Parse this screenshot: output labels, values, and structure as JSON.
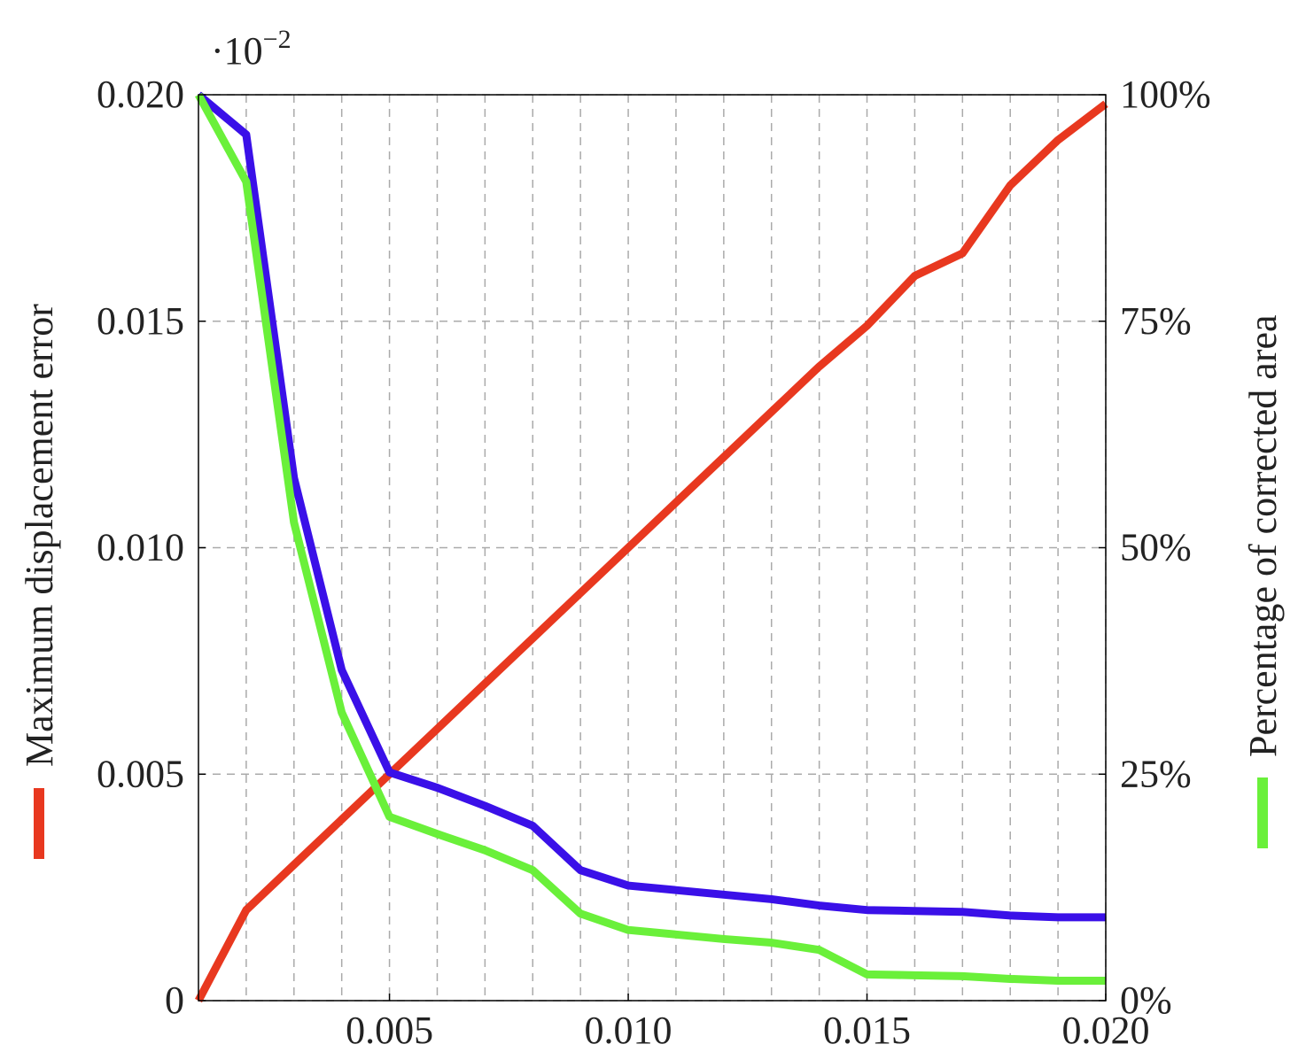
{
  "chart_data": {
    "type": "line",
    "annotation": {
      "base": "·10",
      "exponent": "−2"
    },
    "x": [
      0.001,
      0.002,
      0.003,
      0.004,
      0.005,
      0.006,
      0.007,
      0.008,
      0.009,
      0.01,
      0.011,
      0.012,
      0.013,
      0.014,
      0.015,
      0.016,
      0.017,
      0.018,
      0.019,
      0.02
    ],
    "xlim": [
      0.001,
      0.02
    ],
    "xticks": [
      0.005,
      {
        "value": 0.01,
        "label": "0.010"
      },
      0.015,
      {
        "value": 0.02,
        "label": "0.020"
      }
    ],
    "xgrid_minor": [
      0.002,
      0.003,
      0.004,
      0.006,
      0.007,
      0.008,
      0.009,
      0.011,
      0.012,
      0.013,
      0.014,
      0.016,
      0.017,
      0.018,
      0.019
    ],
    "ylim": [
      0,
      0.02
    ],
    "yticks": [
      0,
      0.005,
      {
        "value": 0.01,
        "label": "0.010"
      },
      0.015,
      {
        "value": 0.02,
        "label": "0.020"
      }
    ],
    "y2lim": [
      0,
      100
    ],
    "y2ticks": [
      {
        "value": 0,
        "label": "0%"
      },
      {
        "value": 25,
        "label": "25%"
      },
      {
        "value": 50,
        "label": "50%"
      },
      {
        "value": 75,
        "label": "75%"
      },
      {
        "value": 100,
        "label": "100%"
      }
    ],
    "grid": true,
    "series": [
      {
        "name": "Maximum displacement error",
        "color": "#e8381f",
        "axis": "y",
        "values": [
          0,
          0.002,
          0.003,
          0.004,
          0.005,
          0.006,
          0.007,
          0.008,
          0.009,
          0.01,
          0.011,
          0.012,
          0.013,
          0.014,
          0.0149,
          0.016,
          0.0165,
          0.018,
          0.019,
          0.0198
        ]
      },
      {
        "color": "#3a10e8",
        "axis": "y2",
        "values": [
          100,
          95.6,
          57.7,
          36.5,
          25.2,
          23.5,
          21.5,
          19.3,
          14.4,
          12.7,
          12.2,
          11.7,
          11.2,
          10.5,
          10.0,
          9.9,
          9.8,
          9.4,
          9.2,
          9.2
        ]
      },
      {
        "name": "Percentage of corrected area",
        "color": "#6af03a",
        "axis": "y2",
        "values": [
          100,
          90.4,
          52.8,
          31.8,
          20.3,
          18.4,
          16.6,
          14.4,
          9.6,
          7.8,
          7.3,
          6.8,
          6.4,
          5.6,
          2.9,
          2.8,
          2.7,
          2.4,
          2.2,
          2.2
        ]
      }
    ]
  }
}
